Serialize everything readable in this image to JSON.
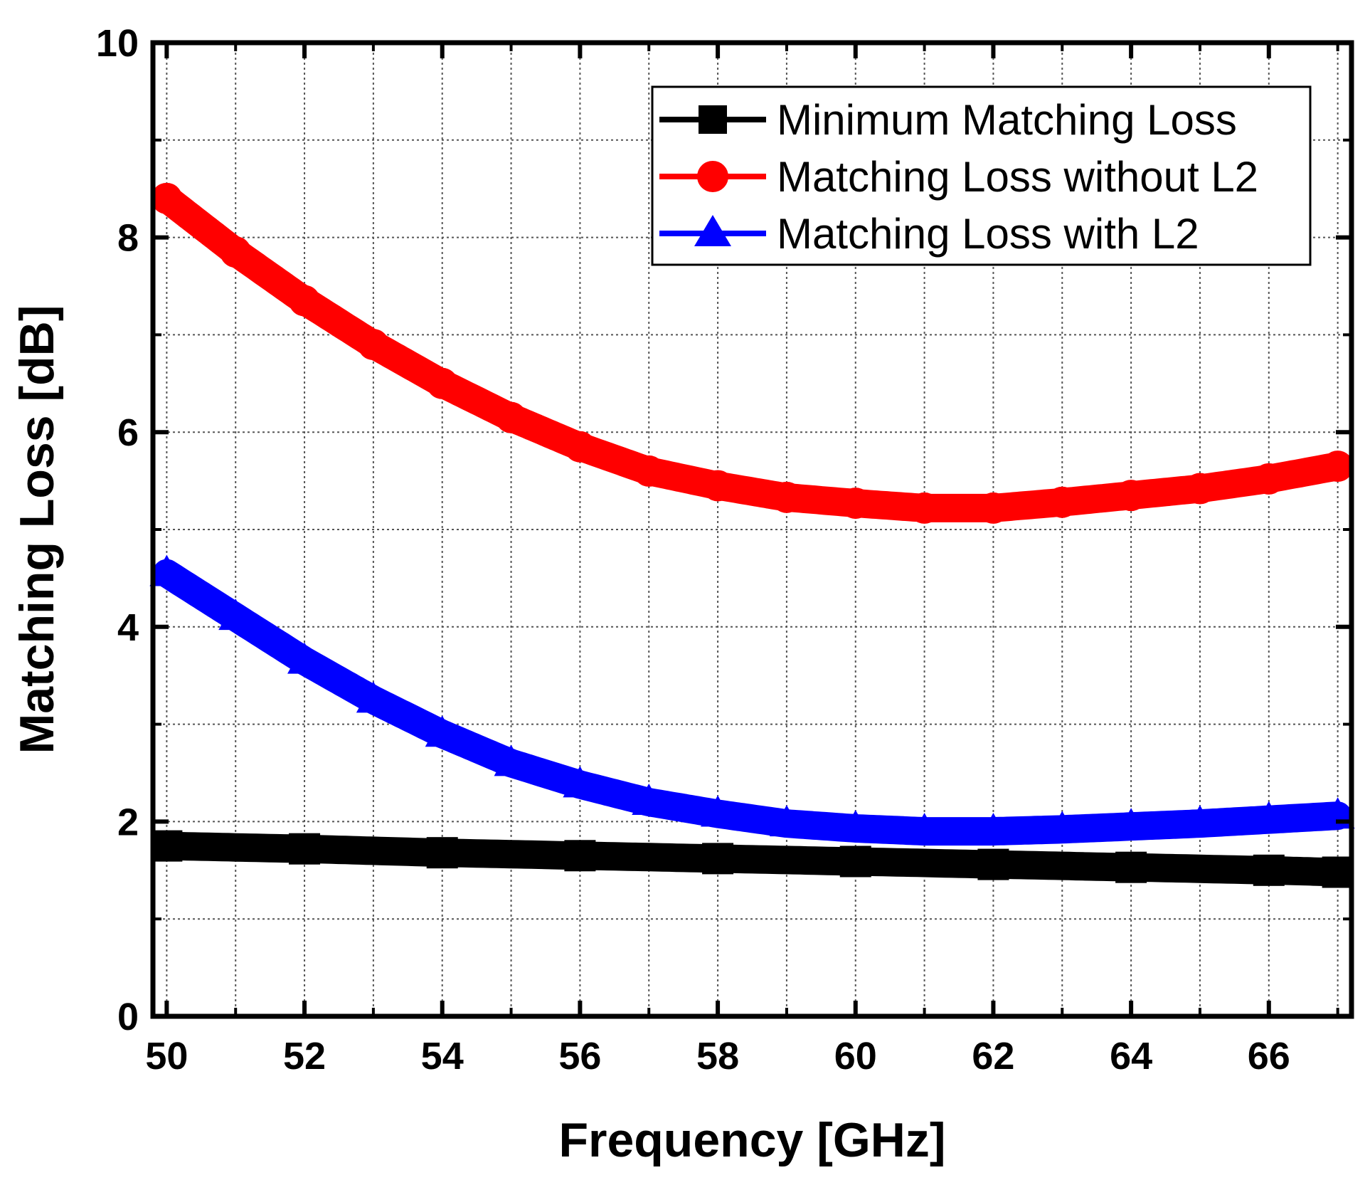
{
  "chart_data": {
    "type": "line",
    "title": "",
    "xlabel": "Frequency [GHz]",
    "ylabel": "Matching Loss [dB]",
    "xlim": [
      49.8,
      67.2
    ],
    "ylim": [
      0,
      10
    ],
    "xticks": [
      50,
      52,
      54,
      56,
      58,
      60,
      62,
      64,
      66
    ],
    "yticks": [
      0,
      2,
      4,
      6,
      8,
      10
    ],
    "xtick_labels": [
      "50",
      "52",
      "54",
      "56",
      "58",
      "60",
      "62",
      "64",
      "66"
    ],
    "ytick_labels": [
      "0",
      "2",
      "4",
      "6",
      "8",
      "10"
    ],
    "grid": true,
    "legend_position": "top-right",
    "series": [
      {
        "name": "Minimum Matching Loss",
        "color": "#000000",
        "marker": "square",
        "x": [
          50,
          52,
          54,
          56,
          58,
          60,
          62,
          64,
          66,
          67
        ],
        "y": [
          1.75,
          1.72,
          1.68,
          1.65,
          1.62,
          1.59,
          1.56,
          1.53,
          1.5,
          1.48
        ]
      },
      {
        "name": "Matching Loss without L2",
        "color": "#ff0000",
        "marker": "circle",
        "x": [
          50,
          51,
          52,
          53,
          54,
          55,
          56,
          57,
          58,
          59,
          60,
          61,
          62,
          63,
          64,
          65,
          66,
          67
        ],
        "y": [
          8.4,
          7.85,
          7.35,
          6.9,
          6.5,
          6.15,
          5.85,
          5.6,
          5.45,
          5.33,
          5.27,
          5.22,
          5.22,
          5.28,
          5.35,
          5.42,
          5.52,
          5.65
        ]
      },
      {
        "name": "Matching Loss with L2",
        "color": "#0000ff",
        "marker": "triangle",
        "x": [
          50,
          51,
          52,
          53,
          54,
          55,
          56,
          57,
          58,
          59,
          60,
          61,
          62,
          63,
          64,
          65,
          66,
          67
        ],
        "y": [
          4.55,
          4.1,
          3.65,
          3.25,
          2.9,
          2.6,
          2.38,
          2.2,
          2.08,
          1.98,
          1.93,
          1.9,
          1.9,
          1.92,
          1.95,
          1.98,
          2.02,
          2.06
        ]
      }
    ]
  }
}
